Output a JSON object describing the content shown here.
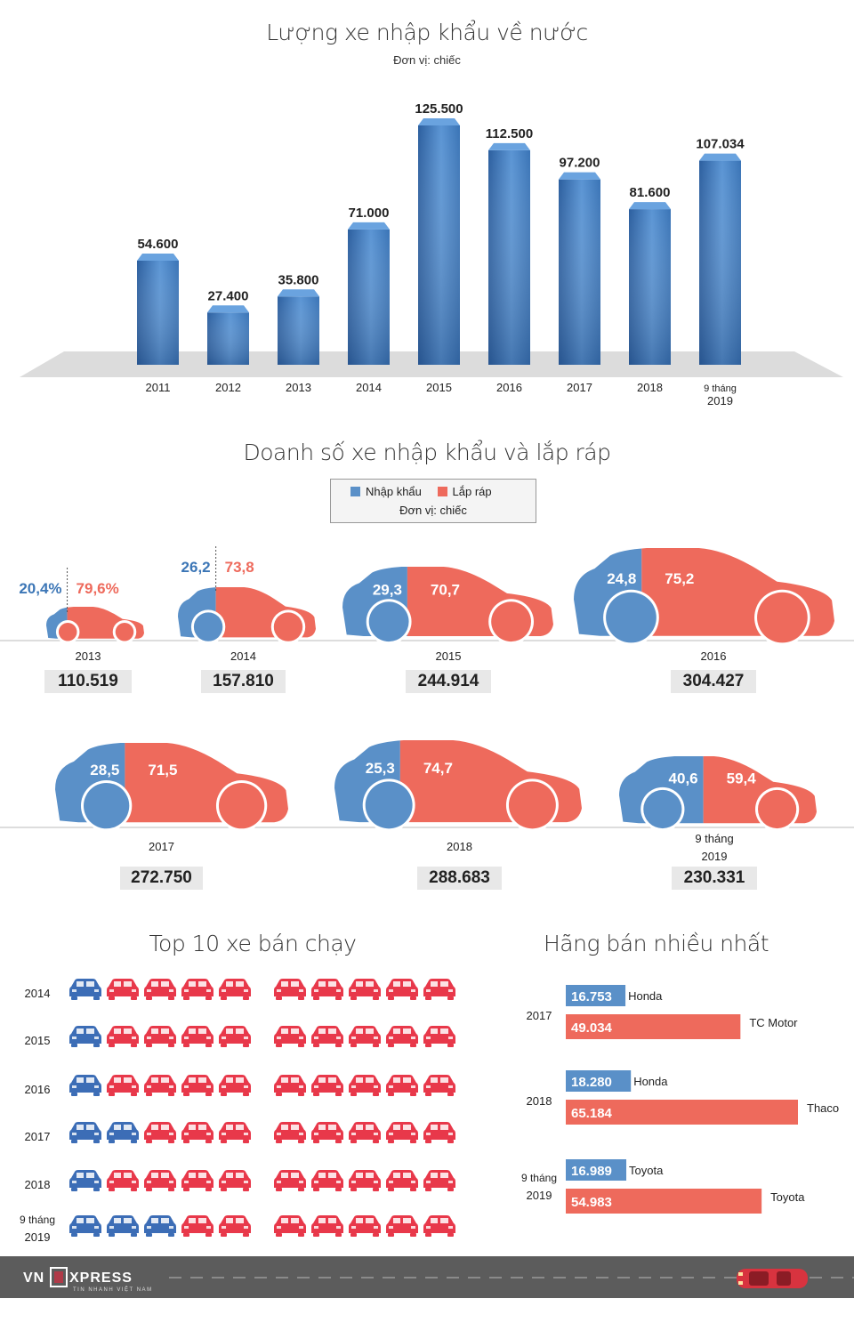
{
  "section1": {
    "title": "Lượng xe nhập khẩu về nước",
    "unit": "Đơn vị: chiếc"
  },
  "chart_data": [
    {
      "type": "bar",
      "title": "Lượng xe nhập khẩu về nước",
      "subtitle": "Đơn vị: chiếc",
      "categories": [
        "2011",
        "2012",
        "2013",
        "2014",
        "2015",
        "2016",
        "2017",
        "2018",
        "9 tháng|2019"
      ],
      "values": [
        54600,
        27400,
        35800,
        71000,
        125500,
        112500,
        97200,
        81600,
        107034
      ],
      "value_labels": [
        "54.600",
        "27.400",
        "35.800",
        "71.000",
        "125.500",
        "112.500",
        "97.200",
        "81.600",
        "107.034"
      ],
      "ylim": [
        0,
        130000
      ]
    },
    {
      "type": "table",
      "title": "Doanh số xe nhập khẩu và lắp ráp",
      "subtitle": "Đơn vị: chiếc",
      "legend": [
        "Nhập khẩu",
        "Lắp ráp"
      ],
      "rows": [
        {
          "year": "2013",
          "total": "110.519",
          "import_pct": "20,4%",
          "assembled_pct": "79,6%",
          "import": 20.4
        },
        {
          "year": "2014",
          "total": "157.810",
          "import_pct": "26,2",
          "assembled_pct": "73,8",
          "import": 26.2
        },
        {
          "year": "2015",
          "total": "244.914",
          "import_pct": "29,3",
          "assembled_pct": "70,7",
          "import": 29.3
        },
        {
          "year": "2016",
          "total": "304.427",
          "import_pct": "24,8",
          "assembled_pct": "75,2",
          "import": 24.8
        },
        {
          "year": "2017",
          "total": "272.750",
          "import_pct": "28,5",
          "assembled_pct": "71,5",
          "import": 28.5
        },
        {
          "year": "2018",
          "total": "288.683",
          "import_pct": "25,3",
          "assembled_pct": "74,7",
          "import": 25.3
        },
        {
          "year": "9 tháng|2019",
          "total": "230.331",
          "import_pct": "40,6",
          "assembled_pct": "59,4",
          "import": 40.6
        }
      ]
    },
    {
      "type": "table",
      "title": "Top 10 xe bán chạy",
      "rows": [
        {
          "year": "2014",
          "imported": 1,
          "total": 10
        },
        {
          "year": "2015",
          "imported": 1,
          "total": 10
        },
        {
          "year": "2016",
          "imported": 1,
          "total": 10
        },
        {
          "year": "2017",
          "imported": 2,
          "total": 10
        },
        {
          "year": "2018",
          "imported": 1,
          "total": 10
        },
        {
          "year": "9 tháng|2019",
          "imported": 3,
          "total": 10
        }
      ]
    },
    {
      "type": "bar",
      "title": "Hãng bán nhiều nhất",
      "groups": [
        {
          "year": "2017",
          "import_brand": "Honda",
          "import_value": 16753,
          "import_label": "16.753",
          "assembled_brand": "TC Motor",
          "assembled_value": 49034,
          "assembled_label": "49.034"
        },
        {
          "year": "2018",
          "import_brand": "Honda",
          "import_value": 18280,
          "import_label": "18.280",
          "assembled_brand": "Thaco",
          "assembled_value": 65184,
          "assembled_label": "65.184"
        },
        {
          "year": "9 tháng|2019",
          "import_brand": "Toyota",
          "import_value": 16989,
          "import_label": "16.989",
          "assembled_brand": "Toyota",
          "assembled_value": 54983,
          "assembled_label": "54.983"
        }
      ]
    }
  ],
  "section2": {
    "title": "Doanh số xe nhập khẩu và lắp ráp",
    "legend_import": "Nhập khẩu",
    "legend_assembled": "Lắp ráp",
    "unit": "Đơn vị: chiếc"
  },
  "section3": {
    "title": "Top 10 xe bán chạy"
  },
  "section4": {
    "title": "Hãng bán nhiều nhất"
  },
  "footer": {
    "logo_main": "VNEXPRESS",
    "logo_sub": "TIN NHANH VIỆT NAM"
  },
  "colors": {
    "import": "#5a90c8",
    "assembled": "#ee6a5c",
    "bar_blue": "#3b76b8",
    "car_blue": "#3c6db6",
    "car_red": "#e8384a",
    "footer": "#5c5c5c"
  }
}
